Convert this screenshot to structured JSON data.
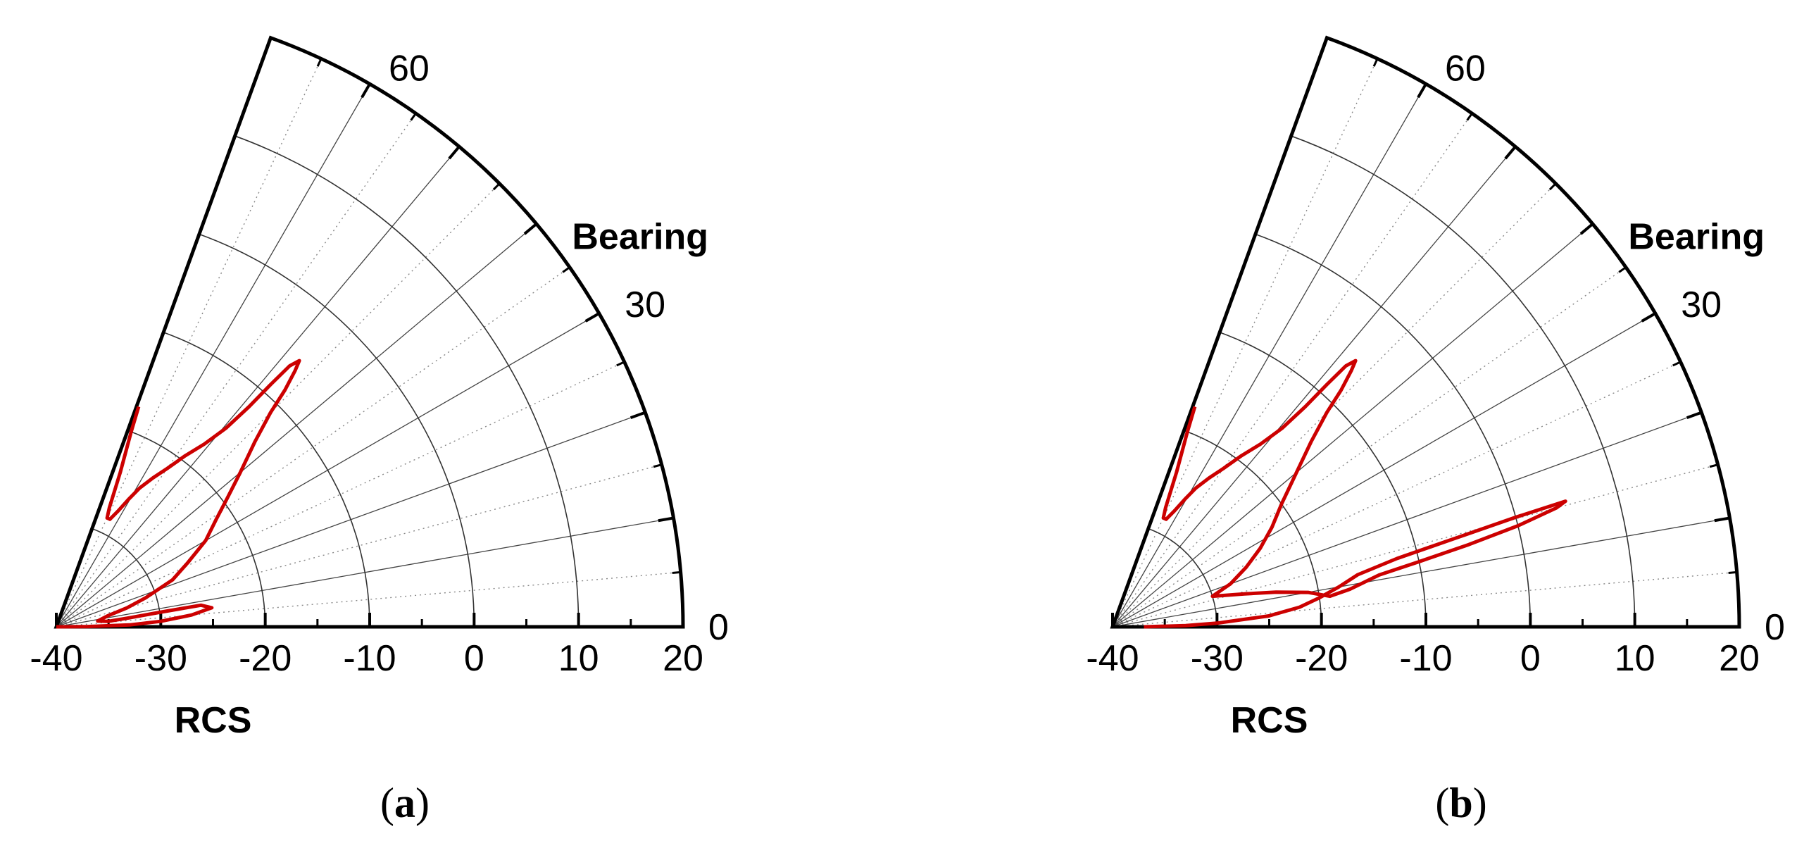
{
  "chart_data": [
    {
      "panel_label": "a",
      "type": "polar-sector",
      "r_axis": {
        "title": "RCS",
        "range": [
          -40,
          20
        ],
        "ticks": [
          -40,
          -30,
          -20,
          -10,
          0,
          10,
          20
        ]
      },
      "theta_axis": {
        "title": "Bearing",
        "range_deg": [
          0,
          70
        ],
        "labeled_ticks": [
          0,
          30,
          60
        ],
        "minor_step_deg": 5,
        "major_step_deg": 10
      },
      "grid": true,
      "series": [
        {
          "color": "#cc0000",
          "points": [
            [
              0,
              -40
            ],
            [
              0.5,
              -37
            ],
            [
              1.5,
              -33
            ],
            [
              3,
              -30
            ],
            [
              5,
              -27
            ],
            [
              7,
              -25
            ],
            [
              8.5,
              -26
            ],
            [
              8,
              -30
            ],
            [
              7,
              -33
            ],
            [
              6,
              -35
            ],
            [
              8,
              -36
            ],
            [
              12,
              -35
            ],
            [
              15,
              -33
            ],
            [
              18,
              -31
            ],
            [
              22,
              -28
            ],
            [
              26,
              -26
            ],
            [
              30,
              -23.5
            ],
            [
              34,
              -21.5
            ],
            [
              37,
              -19.5
            ],
            [
              40,
              -17
            ],
            [
              43,
              -14
            ],
            [
              45,
              -11
            ],
            [
              46,
              -8.5
            ],
            [
              47,
              -6.5
            ],
            [
              47.6,
              -5.5
            ],
            [
              48.2,
              -6.5
            ],
            [
              48.5,
              -9
            ],
            [
              48.8,
              -12
            ],
            [
              49.5,
              -15
            ],
            [
              51,
              -17.5
            ],
            [
              53,
              -19.5
            ],
            [
              55,
              -21.5
            ],
            [
              57,
              -23
            ],
            [
              59,
              -24.5
            ],
            [
              60.5,
              -26
            ],
            [
              62,
              -27.5
            ],
            [
              63.5,
              -28.5
            ],
            [
              65,
              -28.5
            ],
            [
              66,
              -27.5
            ],
            [
              67.5,
              -24
            ],
            [
              69,
              -20
            ],
            [
              69.5,
              -17.5
            ]
          ]
        }
      ]
    },
    {
      "panel_label": "b",
      "type": "polar-sector",
      "r_axis": {
        "title": "RCS",
        "range": [
          -40,
          20
        ],
        "ticks": [
          -40,
          -30,
          -20,
          -10,
          0,
          10,
          20
        ]
      },
      "theta_axis": {
        "title": "Bearing",
        "range_deg": [
          0,
          70
        ],
        "labeled_ticks": [
          0,
          30,
          60
        ],
        "minor_step_deg": 5,
        "major_step_deg": 10
      },
      "grid": true,
      "series": [
        {
          "color": "#cc0000",
          "points": [
            [
              0,
              -37
            ],
            [
              1,
              -33
            ],
            [
              2,
              -30
            ],
            [
              4,
              -25
            ],
            [
              6,
              -22
            ],
            [
              8,
              -20
            ],
            [
              10,
              -18
            ],
            [
              12,
              -16
            ],
            [
              13.5,
              -12
            ],
            [
              14.5,
              -6
            ],
            [
              15.2,
              0
            ],
            [
              15.5,
              5
            ],
            [
              15,
              4
            ],
            [
              14,
              0
            ],
            [
              13,
              -5
            ],
            [
              12,
              -10
            ],
            [
              11,
              -14
            ],
            [
              9,
              -17
            ],
            [
              8,
              -19
            ],
            [
              10,
              -21
            ],
            [
              12,
              -24
            ],
            [
              14,
              -27
            ],
            [
              17,
              -30
            ],
            [
              20,
              -28
            ],
            [
              24,
              -26
            ],
            [
              28,
              -24
            ],
            [
              32,
              -22
            ],
            [
              36,
              -20
            ],
            [
              40,
              -17
            ],
            [
              43,
              -14
            ],
            [
              45,
              -11
            ],
            [
              46,
              -8.5
            ],
            [
              47,
              -6.5
            ],
            [
              47.6,
              -5.5
            ],
            [
              48.2,
              -6.5
            ],
            [
              48.5,
              -9
            ],
            [
              48.8,
              -12
            ],
            [
              49.5,
              -15
            ],
            [
              51,
              -17.5
            ],
            [
              53,
              -19.5
            ],
            [
              55,
              -21.5
            ],
            [
              57,
              -23
            ],
            [
              59,
              -24.5
            ],
            [
              60.5,
              -26
            ],
            [
              62,
              -27.5
            ],
            [
              63.5,
              -28.5
            ],
            [
              65,
              -28.5
            ],
            [
              66,
              -27.5
            ],
            [
              67.5,
              -24
            ],
            [
              69,
              -20
            ],
            [
              69.5,
              -17.5
            ]
          ]
        }
      ]
    }
  ]
}
